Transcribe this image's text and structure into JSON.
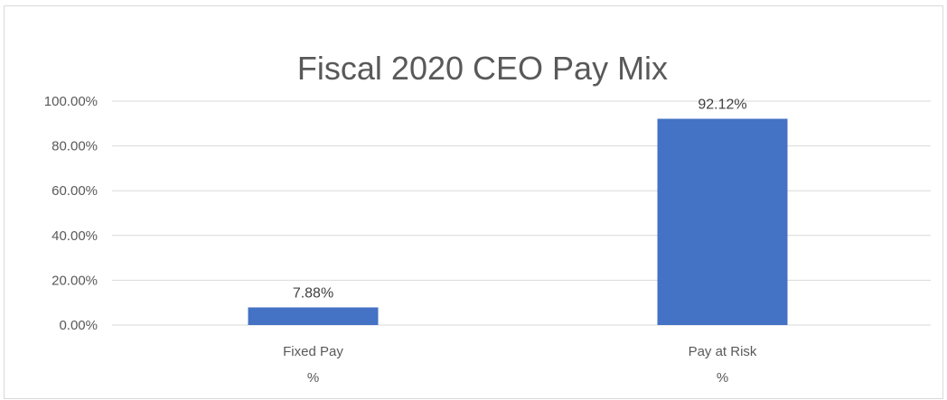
{
  "chart_data": {
    "type": "bar",
    "title": "Fiscal 2020 CEO Pay Mix",
    "categories": [
      {
        "line1": "Fixed Pay",
        "line2": "%"
      },
      {
        "line1": "Pay at Risk",
        "line2": "%"
      }
    ],
    "values": [
      7.88,
      92.12
    ],
    "data_labels": [
      "7.88%",
      "92.12%"
    ],
    "y_ticks": [
      {
        "value": 0,
        "label": "0.00%"
      },
      {
        "value": 20,
        "label": "20.00%"
      },
      {
        "value": 40,
        "label": "40.00%"
      },
      {
        "value": 60,
        "label": "60.00%"
      },
      {
        "value": 80,
        "label": "80.00%"
      },
      {
        "value": 100,
        "label": "100.00%"
      }
    ],
    "ylim": [
      0,
      100
    ],
    "grid": true,
    "legend": "none",
    "colors": {
      "bar": "#4472C4",
      "grid": "#d9d9d9",
      "axis": "#d9d9d9"
    }
  }
}
